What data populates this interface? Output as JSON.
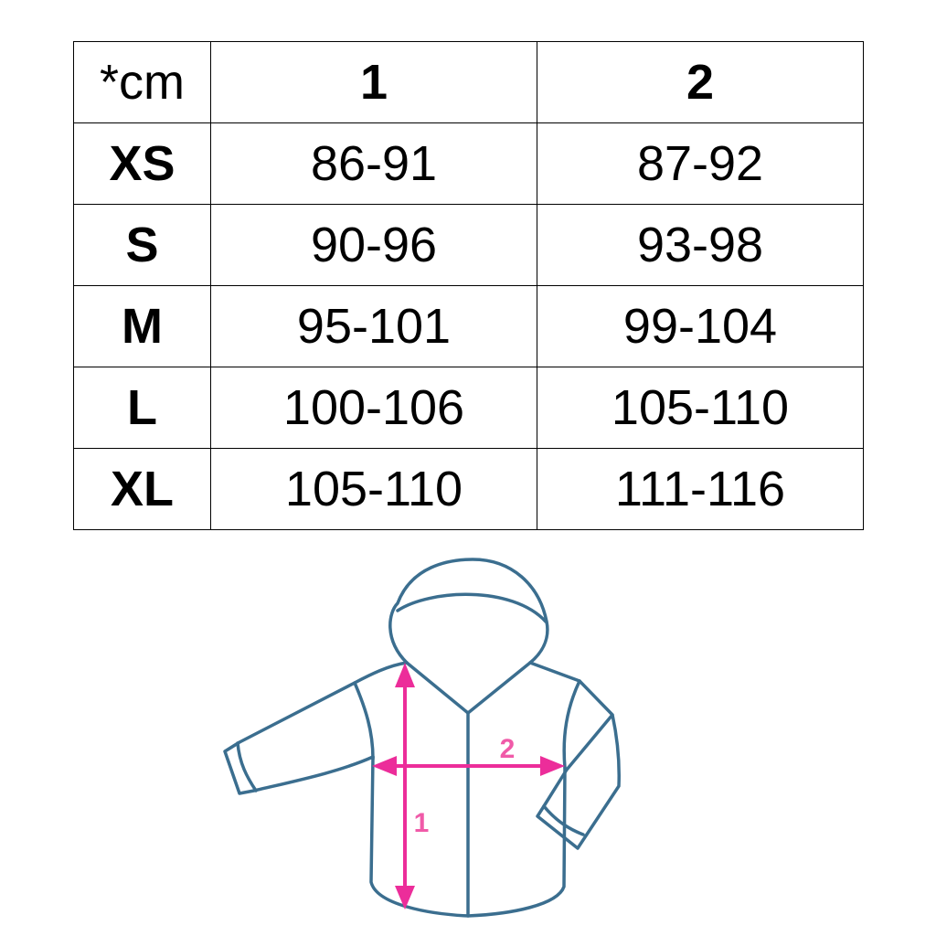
{
  "table": {
    "header": [
      "*cm",
      "1",
      "2"
    ],
    "rows": [
      {
        "size": "XS",
        "m1": "86-91",
        "m2": "87-92"
      },
      {
        "size": "S",
        "m1": "90-96",
        "m2": "93-98"
      },
      {
        "size": "M",
        "m1": "95-101",
        "m2": "99-104"
      },
      {
        "size": "L",
        "m1": "100-106",
        "m2": "105-110"
      },
      {
        "size": "XL",
        "m1": "105-110",
        "m2": "111-116"
      }
    ]
  },
  "diagram": {
    "label_length": "1",
    "label_width": "2",
    "outline_color": "#3b6e8f",
    "arrow_color": "#ec2d9a"
  }
}
